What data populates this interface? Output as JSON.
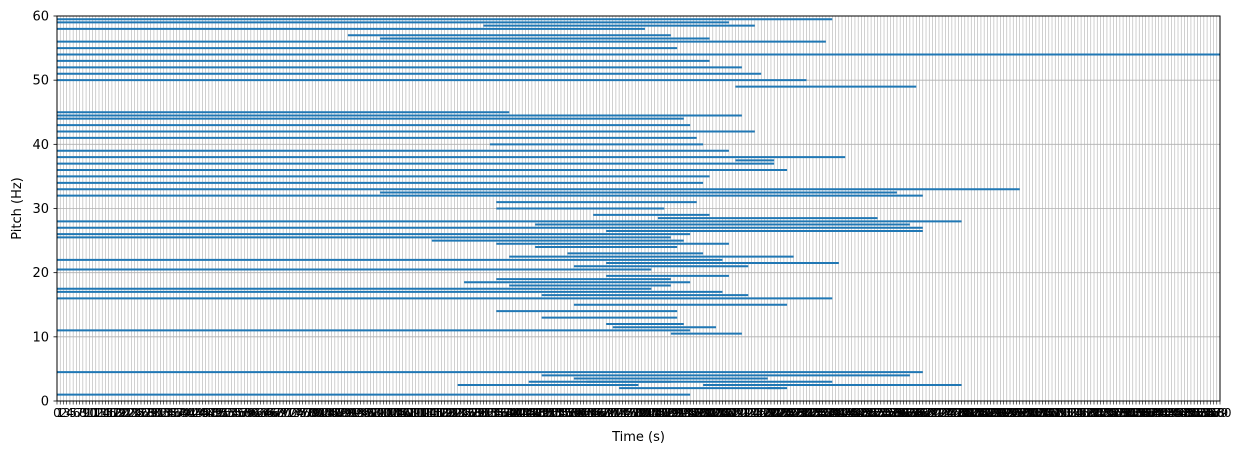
{
  "chart_data": {
    "type": "line",
    "chart_kind": "piano-roll horizontal segments",
    "xlabel": "Time (s)",
    "ylabel": "Pitch (Hz)",
    "xlim": [
      0,
      180
    ],
    "ylim": [
      0,
      60
    ],
    "yticks": [
      0,
      10,
      20,
      30,
      40,
      50,
      60
    ],
    "x_tick_step": 0.5,
    "x_tick_labels_overlap": true,
    "grid": true,
    "legend": "none",
    "colors": {
      "series": "#1f77b4",
      "grid": "#b0b0b0",
      "axes": "#000000"
    },
    "series": [
      {
        "segments": [
          [
            1,
            0,
            98
          ],
          [
            2,
            87,
            112
          ],
          [
            2,
            110,
            113
          ],
          [
            2.5,
            62,
            90
          ],
          [
            2.5,
            100,
            140
          ],
          [
            3,
            73,
            95
          ],
          [
            3,
            82,
            120
          ],
          [
            3.5,
            80,
            110
          ],
          [
            4,
            75,
            132
          ],
          [
            4.5,
            0,
            134
          ],
          [
            10.5,
            95,
            106
          ],
          [
            11,
            0,
            98
          ],
          [
            11.5,
            86,
            102
          ],
          [
            12,
            85,
            97
          ],
          [
            13,
            75,
            96
          ],
          [
            14,
            68,
            96
          ],
          [
            15,
            80,
            113
          ],
          [
            16,
            0,
            120
          ],
          [
            16.5,
            75,
            107
          ],
          [
            17,
            0,
            103
          ],
          [
            17.5,
            0,
            92
          ],
          [
            18,
            70,
            95
          ],
          [
            18.5,
            63,
            98
          ],
          [
            19,
            68,
            95
          ],
          [
            19.5,
            85,
            104
          ],
          [
            20.5,
            0,
            92
          ],
          [
            21,
            80,
            107
          ],
          [
            21.5,
            85,
            121
          ],
          [
            22,
            0,
            103
          ],
          [
            22.5,
            70,
            114
          ],
          [
            23,
            79,
            100
          ],
          [
            24,
            74,
            96
          ],
          [
            24.5,
            68,
            104
          ],
          [
            25,
            58,
            97
          ],
          [
            25.5,
            0,
            95
          ],
          [
            26,
            0,
            98
          ],
          [
            26.5,
            85,
            134
          ],
          [
            27,
            0,
            134
          ],
          [
            27.5,
            74,
            132
          ],
          [
            28,
            0,
            140
          ],
          [
            28.5,
            93,
            127
          ],
          [
            29,
            83,
            101
          ],
          [
            30,
            68,
            94
          ],
          [
            31,
            68,
            99
          ],
          [
            32,
            0,
            134
          ],
          [
            32.5,
            50,
            130
          ],
          [
            33,
            0,
            149
          ],
          [
            34,
            0,
            100
          ],
          [
            35,
            0,
            101
          ],
          [
            36,
            0,
            113
          ],
          [
            37,
            0,
            111
          ],
          [
            37.5,
            105,
            111
          ],
          [
            38,
            0,
            122
          ],
          [
            39,
            0,
            104
          ],
          [
            40,
            67,
            100
          ],
          [
            41,
            0,
            99
          ],
          [
            42,
            0,
            108
          ],
          [
            43,
            0,
            98
          ],
          [
            44,
            0,
            97
          ],
          [
            44.5,
            0,
            106
          ],
          [
            45,
            0,
            70
          ],
          [
            49,
            105,
            133
          ],
          [
            50,
            0,
            116
          ],
          [
            51,
            0,
            109
          ],
          [
            52,
            0,
            106
          ],
          [
            53,
            0,
            101
          ],
          [
            54,
            0,
            180
          ],
          [
            55,
            0,
            96
          ],
          [
            56,
            0,
            119
          ],
          [
            56.5,
            50,
            101
          ],
          [
            57,
            45,
            95
          ],
          [
            58,
            0,
            91
          ],
          [
            58.5,
            66,
            108
          ],
          [
            59,
            0,
            104
          ],
          [
            59.5,
            0,
            120
          ]
        ]
      }
    ]
  }
}
